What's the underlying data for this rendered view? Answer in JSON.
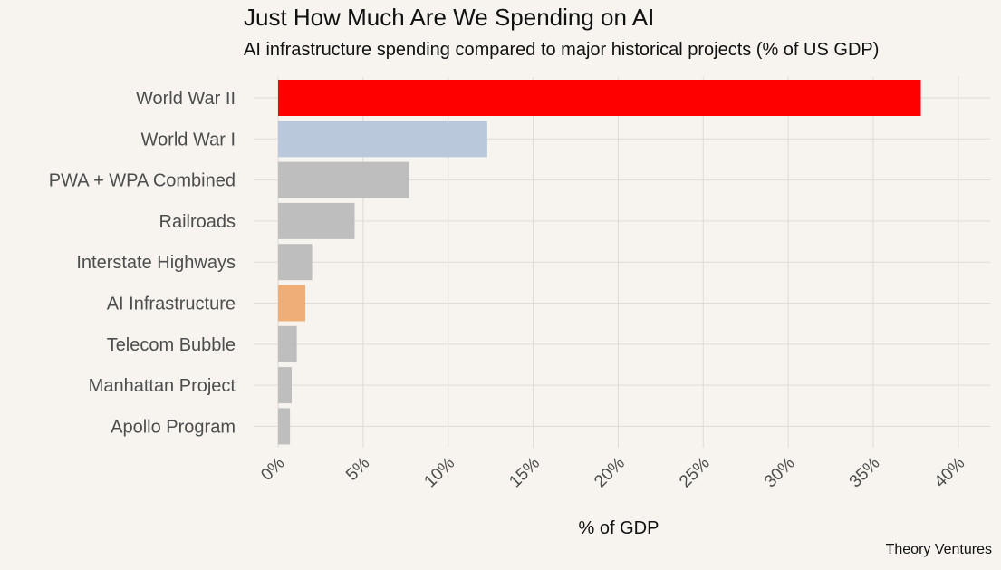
{
  "chart_data": {
    "type": "bar",
    "orientation": "horizontal",
    "title": "Just How Much Are We Spending on AI",
    "subtitle": "AI infrastructure spending compared to major historical projects (% of US GDP)",
    "xlabel": "% of GDP",
    "ylabel": "",
    "caption": "Theory Ventures",
    "categories": [
      "World War II",
      "World War I",
      "PWA + WPA Combined",
      "Railroads",
      "Interstate Highways",
      "AI Infrastructure",
      "Telecom Bubble",
      "Manhattan Project",
      "Apollo Program"
    ],
    "values": [
      37.8,
      12.3,
      7.7,
      4.5,
      2.0,
      1.6,
      1.1,
      0.8,
      0.7
    ],
    "bar_colors": [
      "#ff0000",
      "#b9c8da",
      "#bebebe",
      "#bebebe",
      "#bebebe",
      "#efae78",
      "#bebebe",
      "#bebebe",
      "#bebebe"
    ],
    "xlim": [
      0,
      40
    ],
    "xticks": [
      0,
      5,
      10,
      15,
      20,
      25,
      30,
      35,
      40
    ],
    "xtick_labels": [
      "0%",
      "5%",
      "10%",
      "15%",
      "20%",
      "25%",
      "30%",
      "35%",
      "40%"
    ],
    "grid": true,
    "legend": "none",
    "colors": {
      "background": "#f7f4f0",
      "grid": "#dedad5",
      "text": "#4d4d4d"
    }
  }
}
